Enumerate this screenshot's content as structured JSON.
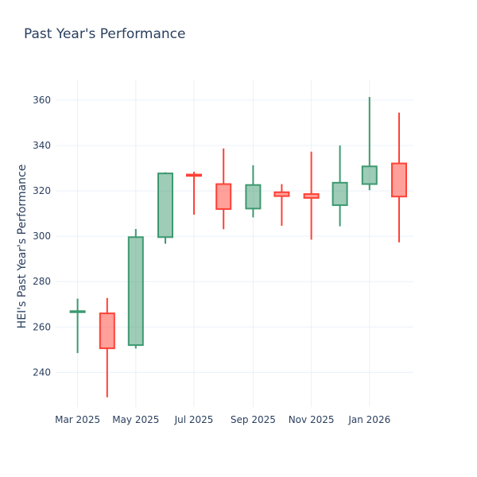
{
  "chart_data": {
    "type": "candlestick",
    "title": "Past Year's Performance",
    "xlabel": "",
    "ylabel": "HEI's Past Year's Performance",
    "xlim": [
      "2025-02-06",
      "2026-02-16"
    ],
    "ylim": [
      224.7,
      369.1
    ],
    "grid": true,
    "x_ticks": [
      {
        "date": "2025-03-01",
        "label": "Mar 2025"
      },
      {
        "date": "2025-05-01",
        "label": "May 2025"
      },
      {
        "date": "2025-07-01",
        "label": "Jul 2025"
      },
      {
        "date": "2025-09-01",
        "label": "Sep 2025"
      },
      {
        "date": "2025-11-01",
        "label": "Nov 2025"
      },
      {
        "date": "2026-01-01",
        "label": "Jan 2026"
      }
    ],
    "y_ticks": [
      240,
      260,
      280,
      300,
      320,
      340,
      360
    ],
    "colors": {
      "increasing": "#3d9970",
      "decreasing": "#ff4136"
    },
    "candles": [
      {
        "date": "2025-03-01",
        "open": 266.5,
        "high": 272.5,
        "low": 248.5,
        "close": 267.0
      },
      {
        "date": "2025-04-01",
        "open": 266.0,
        "high": 272.8,
        "low": 229.0,
        "close": 250.6
      },
      {
        "date": "2025-05-01",
        "open": 252.0,
        "high": 303.2,
        "low": 250.5,
        "close": 299.6
      },
      {
        "date": "2025-06-01",
        "open": 299.6,
        "high": 328.2,
        "low": 296.7,
        "close": 327.7
      },
      {
        "date": "2025-07-01",
        "open": 327.2,
        "high": 328.4,
        "low": 309.5,
        "close": 326.6
      },
      {
        "date": "2025-08-01",
        "open": 323.0,
        "high": 338.7,
        "low": 303.1,
        "close": 312.0
      },
      {
        "date": "2025-09-01",
        "open": 312.2,
        "high": 331.3,
        "low": 308.3,
        "close": 322.6
      },
      {
        "date": "2025-10-01",
        "open": 319.4,
        "high": 323.0,
        "low": 304.6,
        "close": 317.7
      },
      {
        "date": "2025-11-01",
        "open": 318.6,
        "high": 337.3,
        "low": 298.5,
        "close": 316.9
      },
      {
        "date": "2025-12-01",
        "open": 313.7,
        "high": 340.0,
        "low": 304.4,
        "close": 323.6
      },
      {
        "date": "2026-01-01",
        "open": 323.0,
        "high": 361.4,
        "low": 320.3,
        "close": 330.8
      },
      {
        "date": "2026-02-01",
        "open": 332.1,
        "high": 354.5,
        "low": 297.3,
        "close": 317.5
      }
    ]
  }
}
